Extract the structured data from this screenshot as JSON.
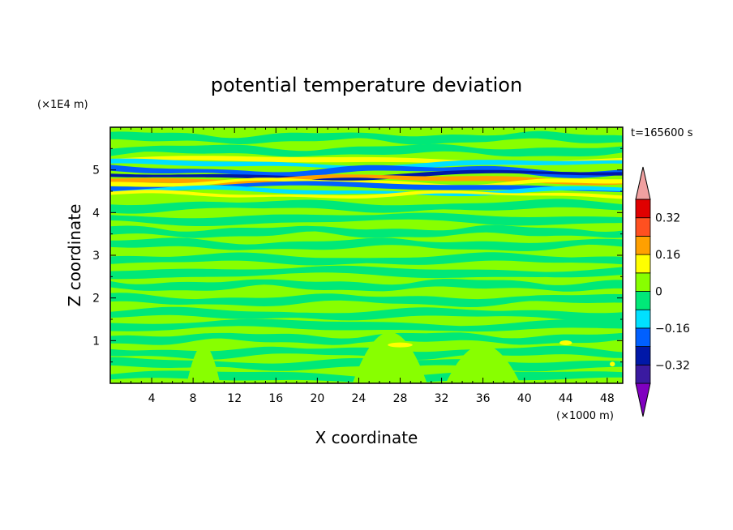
{
  "chart_data": {
    "type": "heatmap",
    "title": "potential temperature deviation",
    "xlabel": "X coordinate",
    "ylabel": "Z coordinate",
    "x_units": "(×1000 m)",
    "y_units": "(×1E4 m)",
    "time_label": "t=165600  s",
    "xlim": [
      0,
      49.5
    ],
    "ylim": [
      0,
      6
    ],
    "x_ticks": [
      "4",
      "8",
      "12",
      "16",
      "20",
      "24",
      "28",
      "32",
      "36",
      "40",
      "44",
      "48"
    ],
    "y_ticks": [
      "1",
      "2",
      "3",
      "4",
      "5"
    ],
    "colorbar": {
      "levels": [
        -0.4,
        -0.32,
        -0.24,
        -0.16,
        -0.08,
        0,
        0.08,
        0.16,
        0.24,
        0.32,
        0.4
      ],
      "labels": [
        "0.32",
        "0.16",
        "0",
        "-0.16",
        "-0.32"
      ],
      "colors": [
        "#8000c0",
        "#3a1aa0",
        "#0018a8",
        "#0060ff",
        "#00e0ff",
        "#00e878",
        "#88ff00",
        "#ffff00",
        "#ffa000",
        "#ff5020",
        "#e00000",
        "#f0a0a0"
      ]
    },
    "bands": [
      {
        "z": 5.22,
        "zw": 0.06,
        "color": "#ffff00",
        "amp": 0.05
      },
      {
        "z": 5.13,
        "zw": 0.06,
        "color": "#00e0ff",
        "amp": 0.06
      },
      {
        "z": 4.98,
        "zw": 0.07,
        "color": "#0060ff",
        "amp": 0.07
      },
      {
        "z": 4.88,
        "zw": 0.05,
        "color": "#0018a8",
        "amp": 0.07
      },
      {
        "z": 4.78,
        "zw": 0.06,
        "color": "#ffa000",
        "amp": 0.06
      },
      {
        "z": 4.7,
        "zw": 0.05,
        "color": "#ffff00",
        "amp": 0.06
      },
      {
        "z": 4.6,
        "zw": 0.06,
        "color": "#0060ff",
        "amp": 0.06
      },
      {
        "z": 4.5,
        "zw": 0.05,
        "color": "#00e0ff",
        "amp": 0.06
      },
      {
        "z": 4.42,
        "zw": 0.04,
        "color": "#ffff00",
        "amp": 0.05
      }
    ]
  }
}
